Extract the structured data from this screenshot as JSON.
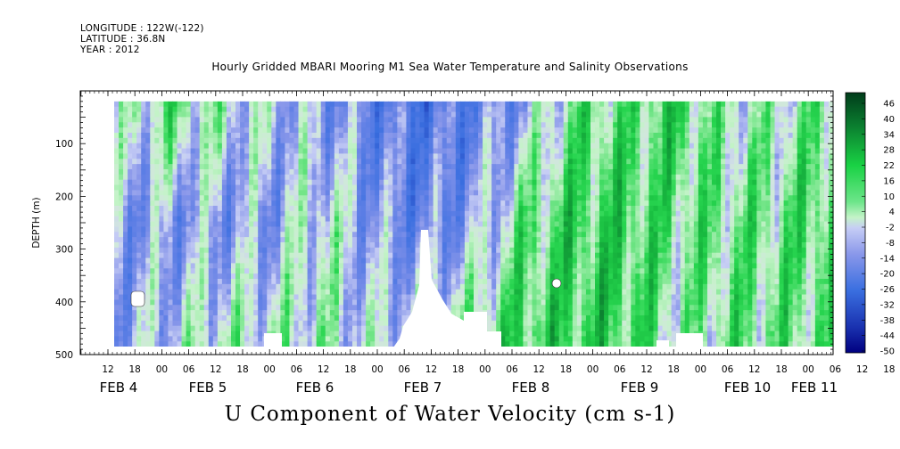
{
  "header": {
    "longitude": "LONGITUDE : 122W(-122)",
    "latitude": "LATITUDE : 36.8N",
    "year": "YEAR : 2012",
    "title": "Hourly Gridded MBARI Mooring M1 Sea Water Temperature and Salinity Observations"
  },
  "figure_title": "U Component of Water Velocity (cm s-1)",
  "colors": {
    "strong_negative": "#000080",
    "negative": "#3a6fe0",
    "weak_negative": "#9aa8ee",
    "weak_positive": "#a8eea8",
    "positive": "#19d244",
    "strong_positive": "#003c1a",
    "missing": "#ffffff"
  },
  "chart_data": {
    "type": "heatmap",
    "title": "Hourly Gridded MBARI Mooring M1 Sea Water Temperature and Salinity Observations",
    "xlabel": "",
    "ylabel": "DEPTH (m)",
    "value_label": "U Component of Water Velocity (cm s-1)",
    "y_reversed": true,
    "ylim": [
      500,
      0
    ],
    "y_ticks": [
      100,
      200,
      300,
      400,
      500
    ],
    "x_hour_ticks": [
      "12",
      "18",
      "00",
      "06",
      "12",
      "18",
      "00",
      "06",
      "12",
      "18",
      "00",
      "06",
      "12",
      "18",
      "00",
      "06",
      "12",
      "18",
      "00",
      "06",
      "12",
      "18",
      "00",
      "06",
      "12",
      "18",
      "00",
      "06",
      "12",
      "18",
      "00"
    ],
    "x_dates": [
      "FEB 4",
      "FEB 5",
      "FEB 6",
      "FEB 7",
      "FEB 8",
      "FEB 9",
      "FEB 10",
      "FEB 11"
    ],
    "data_depth_range": [
      20,
      485
    ],
    "colorbar_levels": [
      46,
      40,
      34,
      28,
      22,
      16,
      10,
      4,
      -2,
      -8,
      -14,
      -20,
      -26,
      -32,
      -38,
      -44,
      -50
    ],
    "columns": [
      {
        "time": "Feb 4 06:00",
        "surface": -2,
        "mid": -8,
        "deep": -8
      },
      {
        "time": "Feb 4 18:00",
        "surface": 10,
        "mid": -8,
        "deep": -2
      },
      {
        "time": "Feb 5 06:00",
        "surface": 4,
        "mid": -8,
        "deep": 4
      },
      {
        "time": "Feb 5 18:00",
        "surface": -2,
        "mid": -8,
        "deep": 4
      },
      {
        "time": "Feb 6 06:00",
        "surface": -8,
        "mid": 4,
        "deep": 4
      },
      {
        "time": "Feb 6 18:00",
        "surface": -14,
        "mid": -8,
        "deep": -2
      },
      {
        "time": "Feb 7 06:00",
        "surface": -20,
        "mid": -14,
        "deep": 4
      },
      {
        "time": "Feb 7 18:00",
        "surface": -14,
        "mid": -8,
        "deep": 10
      },
      {
        "time": "Feb 8 06:00",
        "surface": -8,
        "mid": 10,
        "deep": 16
      },
      {
        "time": "Feb 8 18:00",
        "surface": 10,
        "mid": 16,
        "deep": 16
      },
      {
        "time": "Feb 9 06:00",
        "surface": 10,
        "mid": 16,
        "deep": 16
      },
      {
        "time": "Feb 9 18:00",
        "surface": 16,
        "mid": 10,
        "deep": 4
      },
      {
        "time": "Feb 10 06:00",
        "surface": 4,
        "mid": 10,
        "deep": 10
      },
      {
        "time": "Feb 10 18:00",
        "surface": 4,
        "mid": 10,
        "deep": 10
      },
      {
        "time": "Feb 11 06:00",
        "surface": 10,
        "mid": 16,
        "deep": 10
      }
    ]
  }
}
